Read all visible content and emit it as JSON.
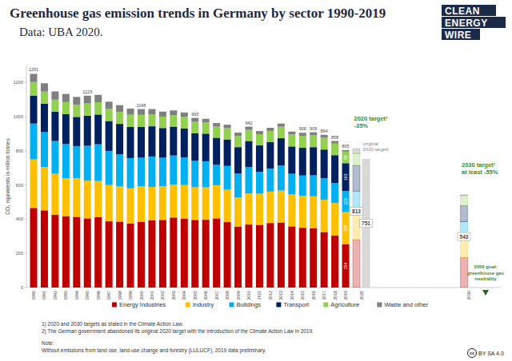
{
  "chart_data": {
    "type": "bar",
    "stacked": true,
    "title": "Greenhouse gas emission trends in Germany by sector 1990-2019",
    "subtitle": "Data: UBA 2020.",
    "y_label": "CO₂ equivalents in million tonnes",
    "categories": [
      "1990",
      "1991",
      "1992",
      "1993",
      "1994",
      "1995",
      "1996",
      "1997",
      "1998",
      "1999",
      "2000",
      "2001",
      "2002",
      "2003",
      "2004",
      "2005",
      "2006",
      "2007",
      "2008",
      "2009",
      "2010",
      "2011",
      "2012",
      "2013",
      "2014",
      "2015",
      "2016",
      "2017",
      "2018",
      "2019"
    ],
    "series": [
      {
        "name": "Energy Industries",
        "color": "#c00000",
        "values": [
          466,
          452,
          426,
          418,
          414,
          405,
          412,
          388,
          386,
          375,
          385,
          393,
          396,
          410,
          404,
          396,
          397,
          405,
          383,
          357,
          369,
          367,
          378,
          381,
          358,
          350,
          346,
          325,
          305,
          254
        ]
      },
      {
        "name": "Industry",
        "color": "#ffc000",
        "values": [
          284,
          253,
          240,
          222,
          226,
          221,
          212,
          212,
          206,
          206,
          208,
          196,
          197,
          193,
          196,
          192,
          190,
          194,
          190,
          171,
          182,
          183,
          184,
          187,
          187,
          188,
          188,
          189,
          190,
          188
        ]
      },
      {
        "name": "Buildings",
        "color": "#00b0f0",
        "values": [
          210,
          205,
          192,
          200,
          188,
          204,
          215,
          200,
          188,
          177,
          167,
          178,
          167,
          170,
          162,
          154,
          152,
          119,
          139,
          139,
          154,
          127,
          135,
          146,
          121,
          118,
          123,
          127,
          117,
          123
        ]
      },
      {
        "name": "Transport",
        "color": "#002060",
        "values": [
          164,
          166,
          172,
          175,
          171,
          176,
          174,
          175,
          178,
          182,
          181,
          177,
          174,
          169,
          170,
          161,
          162,
          159,
          155,
          155,
          153,
          155,
          154,
          160,
          160,
          162,
          165,
          167,
          163,
          163
        ]
      },
      {
        "name": "Agriculture",
        "color": "#92d050",
        "values": [
          79,
          71,
          70,
          71,
          70,
          72,
          72,
          71,
          71,
          72,
          70,
          70,
          67,
          67,
          67,
          67,
          66,
          65,
          66,
          66,
          65,
          66,
          66,
          68,
          70,
          70,
          70,
          69,
          68,
          68
        ]
      },
      {
        "name": "Waste and other",
        "color": "#7f7f7f",
        "values": [
          48,
          49,
          48,
          47,
          47,
          45,
          43,
          42,
          39,
          36,
          34,
          31,
          29,
          28,
          26,
          23,
          21,
          21,
          20,
          19,
          19,
          18,
          18,
          18,
          17,
          18,
          17,
          17,
          15,
          9
        ]
      }
    ],
    "totals": [
      1251,
      null,
      null,
      null,
      null,
      1123,
      null,
      null,
      null,
      null,
      1045,
      null,
      null,
      null,
      null,
      993,
      null,
      null,
      null,
      null,
      942,
      null,
      null,
      null,
      null,
      906,
      909,
      894,
      858,
      805
    ],
    "ylim": [
      0,
      1300
    ],
    "yticks": [
      0,
      200,
      400,
      600,
      800,
      1000,
      1200
    ],
    "grid": false,
    "data_labels": true,
    "legend": "bottom",
    "targets": [
      {
        "name": [
          "2020 target¹"
        ],
        "note": "-35%",
        "category": "2020",
        "values": [
          280,
          145,
          140,
          150,
          70,
          28
        ],
        "total": 813
      },
      {
        "name": [
          "original",
          "2020 target²"
        ],
        "total": 751
      },
      {
        "name": [
          "2030 target¹"
        ],
        "note": "at least -55%",
        "category": "2030",
        "values": [
          175,
          140,
          70,
          95,
          58,
          5
        ],
        "total": 543
      },
      {
        "name": [
          "2050 goal:",
          "greenhouse gas",
          "neutrality"
        ]
      }
    ],
    "footnotes": [
      "1) 2020 and 2030 targets as stated in the Climate Action Law.",
      "2) The German government abandoned its original 2020 target with the introduction of the Climate Action Law in 2019."
    ],
    "note_title": "Note:",
    "note": "Without emissions from land use, land-use change and forestry (LULUCF), 2019 data preliminary.",
    "source_logo": [
      "CLEAN",
      "ENERGY",
      "WIRE"
    ],
    "license_icon": "cc",
    "license": "BY SA 4.0"
  }
}
